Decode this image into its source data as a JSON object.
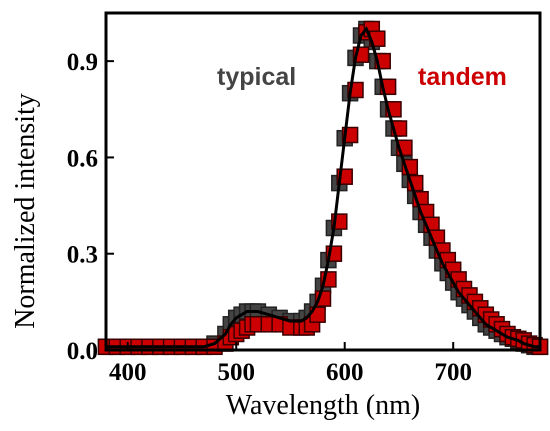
{
  "chart_data": {
    "type": "scatter",
    "xlabel": "Wavelength (nm)",
    "ylabel": "Normalized intensity",
    "xlim": [
      380,
      780
    ],
    "ylim": [
      0,
      1.05
    ],
    "x_ticks": [
      400,
      500,
      600,
      700
    ],
    "x_tick_labels": [
      "400",
      "500",
      "600",
      "700"
    ],
    "y_ticks": [
      0.0,
      0.3,
      0.6,
      0.9
    ],
    "y_tick_labels": [
      "0.0",
      "0.3",
      "0.6",
      "0.9"
    ],
    "grid": false,
    "legend_placement": "top-center",
    "series": [
      {
        "name": "typical",
        "color": "#444444",
        "marker": "square",
        "line": true,
        "x": [
          380,
          390,
          400,
          410,
          420,
          430,
          440,
          450,
          460,
          470,
          480,
          490,
          495,
          500,
          505,
          510,
          515,
          520,
          530,
          540,
          550,
          560,
          565,
          570,
          575,
          580,
          585,
          590,
          595,
          600,
          605,
          610,
          615,
          620,
          625,
          630,
          635,
          640,
          645,
          650,
          655,
          660,
          665,
          670,
          675,
          680,
          685,
          690,
          695,
          700,
          705,
          710,
          715,
          720,
          725,
          730,
          735,
          740,
          745,
          750,
          755,
          760,
          765,
          770,
          775,
          780
        ],
        "y": [
          0.01,
          0.01,
          0.01,
          0.01,
          0.01,
          0.01,
          0.01,
          0.01,
          0.01,
          0.01,
          0.02,
          0.05,
          0.08,
          0.1,
          0.11,
          0.12,
          0.12,
          0.12,
          0.11,
          0.1,
          0.09,
          0.09,
          0.1,
          0.12,
          0.15,
          0.2,
          0.28,
          0.38,
          0.52,
          0.66,
          0.8,
          0.91,
          0.98,
          1.0,
          0.96,
          0.9,
          0.82,
          0.75,
          0.69,
          0.63,
          0.58,
          0.53,
          0.48,
          0.43,
          0.39,
          0.35,
          0.31,
          0.27,
          0.24,
          0.21,
          0.18,
          0.16,
          0.14,
          0.12,
          0.1,
          0.08,
          0.07,
          0.06,
          0.05,
          0.04,
          0.035,
          0.03,
          0.02,
          0.015,
          0.01,
          0.01
        ]
      },
      {
        "name": "tandem",
        "color": "#cc0000",
        "marker": "square",
        "line": false,
        "x": [
          380,
          390,
          400,
          410,
          420,
          430,
          440,
          450,
          460,
          470,
          480,
          490,
          495,
          500,
          505,
          510,
          515,
          520,
          530,
          540,
          550,
          560,
          565,
          570,
          575,
          580,
          585,
          590,
          595,
          600,
          605,
          610,
          615,
          620,
          625,
          630,
          635,
          640,
          645,
          650,
          655,
          660,
          665,
          670,
          675,
          680,
          685,
          690,
          695,
          700,
          705,
          710,
          715,
          720,
          725,
          730,
          735,
          740,
          745,
          750,
          755,
          760,
          765,
          770,
          775,
          780
        ],
        "y": [
          0.01,
          0.01,
          0.01,
          0.01,
          0.01,
          0.01,
          0.01,
          0.01,
          0.01,
          0.01,
          0.01,
          0.02,
          0.04,
          0.05,
          0.06,
          0.07,
          0.08,
          0.08,
          0.08,
          0.08,
          0.07,
          0.07,
          0.07,
          0.08,
          0.11,
          0.16,
          0.22,
          0.3,
          0.4,
          0.54,
          0.67,
          0.81,
          0.92,
          0.99,
          1.0,
          0.97,
          0.9,
          0.82,
          0.75,
          0.69,
          0.63,
          0.57,
          0.52,
          0.47,
          0.43,
          0.39,
          0.35,
          0.31,
          0.28,
          0.25,
          0.22,
          0.19,
          0.17,
          0.15,
          0.13,
          0.11,
          0.095,
          0.08,
          0.065,
          0.05,
          0.04,
          0.035,
          0.03,
          0.02,
          0.015,
          0.01
        ]
      }
    ]
  }
}
